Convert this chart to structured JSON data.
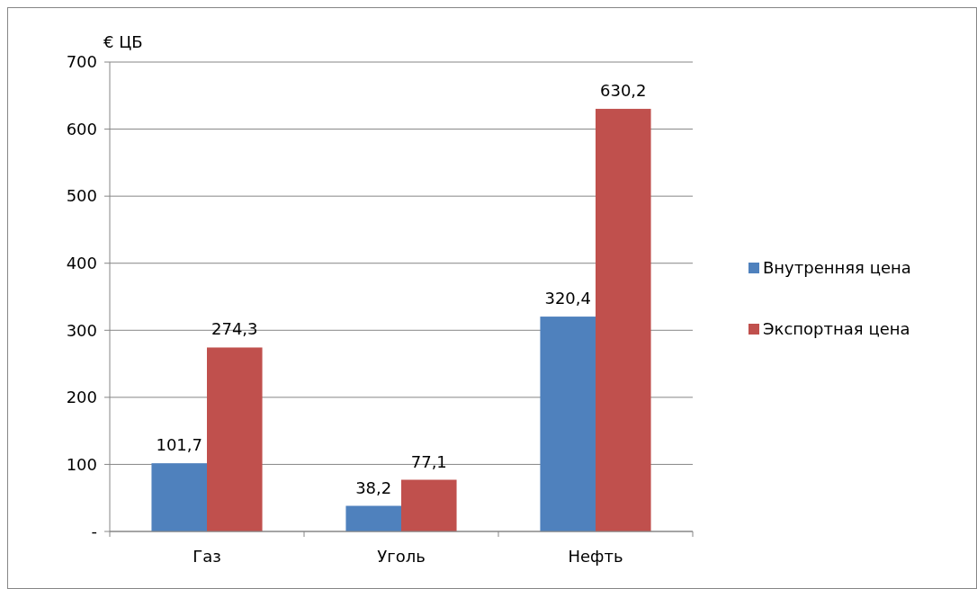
{
  "chart_data": {
    "type": "bar",
    "ylabel": "€ ЦБ",
    "categories": [
      "Газ",
      "Уголь",
      "Нефть"
    ],
    "series": [
      {
        "name": "Внутренняя цена",
        "color": "#4f81bd",
        "values": [
          101.7,
          38.2,
          320.4
        ],
        "value_labels": [
          "101,7",
          "38,2",
          "320,4"
        ]
      },
      {
        "name": "Экспортная цена",
        "color": "#c0504d",
        "values": [
          274.3,
          77.1,
          630.2
        ],
        "value_labels": [
          "274,3",
          "77,1",
          "630,2"
        ]
      }
    ],
    "ylim": [
      0,
      700
    ],
    "yticks": [
      {
        "value": 0,
        "label": "-"
      },
      100,
      200,
      300,
      400,
      500,
      600,
      700
    ],
    "grid": "y",
    "legend": "right"
  }
}
